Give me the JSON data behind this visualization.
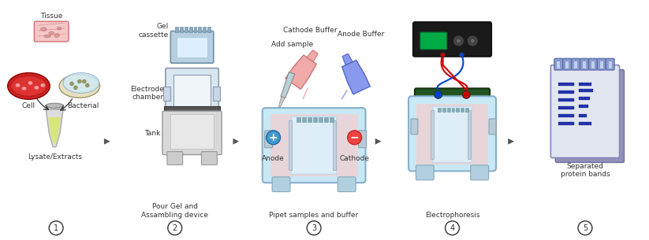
{
  "bg_color": "#ffffff",
  "arrow_color": "#555555",
  "step_labels": {
    "1_bottom": "Lysate/Extracts",
    "2_bottom": "Pour Gel and\nAssambling device",
    "3_bottom": "Pipet samples and buffer",
    "4_bottom": "Electrophoresis",
    "5_bottom": "Separated\nprotein bands"
  },
  "step_numbers": [
    "1",
    "2",
    "3",
    "4",
    "5"
  ],
  "colors": {
    "tissue_fill": "#f5c8c8",
    "tissue_line": "#d07070",
    "cell_red": "#cc2222",
    "cell_fill": "#dd3333",
    "bacterial_fill": "#e8dfc0",
    "bacterial_lid": "#d0ecf8",
    "tube_body": "#dddddd",
    "tube_cap": "#bbbbbb",
    "tube_liquid": "#d8e870",
    "gel_cassette_fill": "#b8cfe0",
    "gel_cassette_edge": "#7090a8",
    "gel_cassette_ridge": "#90aabf",
    "electrode_fill": "#d8e8f0",
    "electrode_edge": "#9099b0",
    "electrode_inner": "#f0f5fa",
    "tank_top": "#555555",
    "tank_body": "#cccccc",
    "tank_edge": "#888888",
    "tank3_outer": "#c8e8f5",
    "tank3_liquid": "#f5cece",
    "tank3_gel": "#ddeef8",
    "gel_wall": "#c8d8e8",
    "anode_circle": "#4499cc",
    "cathode_circle": "#ee4444",
    "pip_pink": "#f0a0a0",
    "pip_blue": "#7788ee",
    "pip_grey": "#999999",
    "power_fill": "#1a1a1a",
    "power_edge": "#111111",
    "display_fill": "#00aa44",
    "knob_fill": "#444444",
    "lid_fill": "#225522",
    "lid_edge": "#113311",
    "wire_red": "#cc0000",
    "wire_blue": "#0044cc",
    "nb_back": "#aab0d0",
    "nb_front": "#e0e4ee",
    "nb_spiral": "#8899cc",
    "band_color": "#2233aa"
  }
}
